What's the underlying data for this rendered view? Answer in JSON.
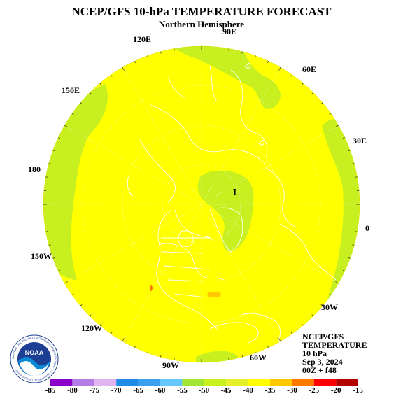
{
  "title": "NCEP/GFS 10-hPa TEMPERATURE FORECAST",
  "subtitle": "Northern Hemisphere",
  "longitude_labels": [
    "90E",
    "60E",
    "30E",
    "0",
    "30W",
    "60W",
    "90W",
    "120W",
    "150W",
    "180",
    "150E",
    "120E"
  ],
  "pressure_low_marker": "L",
  "info": {
    "line1": "NCEP/GFS",
    "line2": "TEMPERATURE",
    "line3": "10 hPa",
    "line4": "Sep 3, 2024",
    "line5": "00Z + f48"
  },
  "logo": {
    "name": "NOAA",
    "ring_text": "NATIONAL OCEANIC AND ATMOSPHERIC ADMINISTRATION · U.S. DEPARTMENT OF COMMERCE"
  },
  "legend": {
    "labels": [
      "-85",
      "-80",
      "-75",
      "-70",
      "-65",
      "-60",
      "-55",
      "-50",
      "-45",
      "-40",
      "-35",
      "-30",
      "-25",
      "-20",
      "-15"
    ],
    "colors": [
      "#8a00c8",
      "#b47ee6",
      "#e0b4f0",
      "#1e8ce6",
      "#3ca0f0",
      "#64c8ff",
      "#a0e632",
      "#c8f020",
      "#e6f028",
      "#ffff00",
      "#ffc800",
      "#ff7800",
      "#ff0000",
      "#b40000",
      "#8c8c8c"
    ]
  },
  "colors": {
    "background_field": "#ffff00",
    "cold_field": "#c8f020",
    "warm_field": "#ffc800",
    "coastline": "#ffffff"
  }
}
